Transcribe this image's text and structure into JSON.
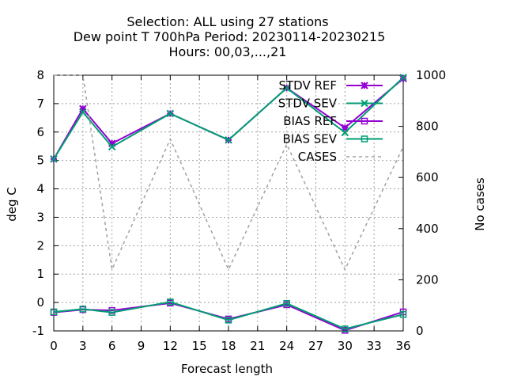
{
  "chart_data": {
    "type": "line",
    "title_lines": [
      "Selection: ALL using    27 stations",
      "Dew point T 700hPa   Period: 20230114-20230215",
      "Hours:  00,03,...,21"
    ],
    "xlabel": "Forecast length",
    "ylabel": "deg C",
    "y2label": "No cases",
    "xlim": [
      0,
      36
    ],
    "ylim": [
      -1,
      8
    ],
    "y2lim": [
      0,
      1000
    ],
    "xticks": [
      0,
      3,
      6,
      9,
      12,
      15,
      18,
      21,
      24,
      27,
      30,
      33,
      36
    ],
    "yticks": [
      -1,
      0,
      1,
      2,
      3,
      4,
      5,
      6,
      7,
      8
    ],
    "y2ticks": [
      0,
      200,
      400,
      600,
      800,
      1000
    ],
    "legend_position": "top-right",
    "grid": true,
    "x": [
      0,
      3,
      6,
      12,
      18,
      24,
      30,
      36
    ],
    "series": [
      {
        "name": "STDV REF",
        "axis": "y",
        "color": "#9400d3",
        "marker": "star",
        "values": [
          5.05,
          6.82,
          5.6,
          6.65,
          5.72,
          7.55,
          6.15,
          7.88
        ]
      },
      {
        "name": "STDV SEV",
        "axis": "y",
        "color": "#009e73",
        "marker": "x",
        "values": [
          5.05,
          6.7,
          5.48,
          6.65,
          5.72,
          7.55,
          5.98,
          7.92
        ]
      },
      {
        "name": "BIAS REF",
        "axis": "y",
        "color": "#9400d3",
        "marker": "square",
        "values": [
          -0.35,
          -0.25,
          -0.28,
          -0.02,
          -0.58,
          -0.08,
          -0.98,
          -0.33
        ]
      },
      {
        "name": "BIAS SEV",
        "axis": "y",
        "color": "#009e73",
        "marker": "square",
        "values": [
          -0.33,
          -0.23,
          -0.35,
          0.02,
          -0.62,
          -0.03,
          -0.93,
          -0.42
        ]
      },
      {
        "name": "CASES",
        "axis": "y2",
        "color": "#a0a0a0",
        "dashed": true,
        "values": [
          1000,
          1000,
          240,
          750,
          240,
          730,
          240,
          720
        ]
      }
    ]
  }
}
